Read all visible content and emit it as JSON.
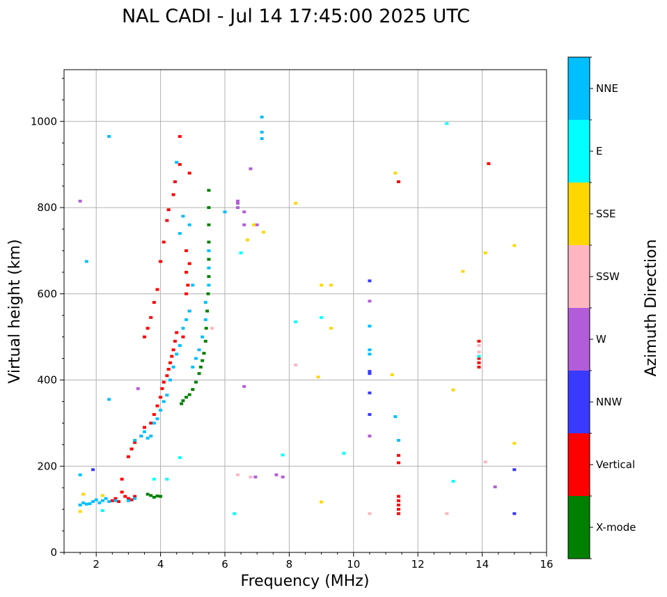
{
  "chart_data": {
    "type": "scatter",
    "title": "NAL CADI - Jul 14 17:45:00 2025 UTC",
    "xlabel": "Frequency (MHz)",
    "ylabel": "Virtual height (km)",
    "xlim": [
      1,
      16
    ],
    "ylim": [
      0,
      1120
    ],
    "xticks": [
      2,
      4,
      6,
      8,
      10,
      12,
      14,
      16
    ],
    "yticks": [
      0,
      200,
      400,
      600,
      800,
      1000
    ],
    "grid": true,
    "colorbar": {
      "label": "Azimuth Direction",
      "categories": [
        {
          "name": "X-mode",
          "color": "#008000"
        },
        {
          "name": "Vertical",
          "color": "#ff0000"
        },
        {
          "name": "NNW",
          "color": "#3a3aff"
        },
        {
          "name": "W",
          "color": "#b35cd9"
        },
        {
          "name": "SSW",
          "color": "#ffb6c1"
        },
        {
          "name": "SSE",
          "color": "#ffd700"
        },
        {
          "name": "E",
          "color": "#00ffff"
        },
        {
          "name": "NNE",
          "color": "#00bfff"
        }
      ]
    },
    "series": [
      {
        "name": "X-mode",
        "points": [
          [
            3.6,
            135
          ],
          [
            3.7,
            132
          ],
          [
            3.8,
            128
          ],
          [
            3.9,
            131
          ],
          [
            4.0,
            130
          ],
          [
            4.65,
            345
          ],
          [
            4.7,
            352
          ],
          [
            4.8,
            360
          ],
          [
            4.9,
            366
          ],
          [
            5.0,
            378
          ],
          [
            5.1,
            395
          ],
          [
            5.2,
            415
          ],
          [
            5.25,
            430
          ],
          [
            5.3,
            445
          ],
          [
            5.35,
            462
          ],
          [
            5.4,
            490
          ],
          [
            5.42,
            520
          ],
          [
            5.45,
            560
          ],
          [
            5.48,
            600
          ],
          [
            5.5,
            640
          ],
          [
            5.5,
            680
          ],
          [
            5.5,
            720
          ],
          [
            5.5,
            760
          ],
          [
            5.5,
            800
          ],
          [
            5.5,
            840
          ]
        ]
      },
      {
        "name": "Vertical",
        "points": [
          [
            2.5,
            120
          ],
          [
            2.6,
            125
          ],
          [
            2.7,
            118
          ],
          [
            2.8,
            140
          ],
          [
            2.8,
            170
          ],
          [
            2.9,
            130
          ],
          [
            3.0,
            125
          ],
          [
            3.1,
            122
          ],
          [
            3.2,
            130
          ],
          [
            3.0,
            222
          ],
          [
            3.1,
            240
          ],
          [
            3.2,
            255
          ],
          [
            3.4,
            270
          ],
          [
            3.5,
            290
          ],
          [
            3.7,
            300
          ],
          [
            3.8,
            320
          ],
          [
            3.9,
            340
          ],
          [
            4.0,
            360
          ],
          [
            4.05,
            380
          ],
          [
            4.1,
            395
          ],
          [
            4.2,
            410
          ],
          [
            4.25,
            425
          ],
          [
            4.3,
            440
          ],
          [
            4.35,
            455
          ],
          [
            4.4,
            470
          ],
          [
            4.45,
            490
          ],
          [
            4.5,
            510
          ],
          [
            3.5,
            500
          ],
          [
            3.6,
            520
          ],
          [
            3.7,
            545
          ],
          [
            3.8,
            580
          ],
          [
            3.9,
            610
          ],
          [
            4.0,
            675
          ],
          [
            4.1,
            720
          ],
          [
            4.2,
            770
          ],
          [
            4.25,
            795
          ],
          [
            4.4,
            830
          ],
          [
            4.45,
            860
          ],
          [
            4.8,
            650
          ],
          [
            4.8,
            600
          ],
          [
            4.7,
            500
          ],
          [
            4.6,
            900
          ],
          [
            4.9,
            880
          ],
          [
            4.8,
            700
          ],
          [
            4.85,
            620
          ],
          [
            4.9,
            560
          ],
          [
            4.9,
            670
          ],
          [
            4.6,
            965
          ],
          [
            11.4,
            90
          ],
          [
            11.4,
            100
          ],
          [
            11.4,
            110
          ],
          [
            11.4,
            120
          ],
          [
            11.4,
            130
          ],
          [
            11.4,
            208
          ],
          [
            11.4,
            225
          ],
          [
            11.4,
            860
          ],
          [
            14.2,
            902
          ],
          [
            13.9,
            430
          ],
          [
            13.9,
            440
          ],
          [
            13.9,
            450
          ],
          [
            13.9,
            490
          ]
        ]
      },
      {
        "name": "NNW",
        "points": [
          [
            10.5,
            320
          ],
          [
            10.5,
            370
          ],
          [
            10.5,
            415
          ],
          [
            10.5,
            420
          ],
          [
            10.5,
            630
          ],
          [
            15.0,
            90
          ],
          [
            15.0,
            192
          ],
          [
            1.9,
            192
          ]
        ]
      },
      {
        "name": "W",
        "points": [
          [
            6.4,
            800
          ],
          [
            6.4,
            810
          ],
          [
            6.4,
            815
          ],
          [
            6.6,
            385
          ],
          [
            6.6,
            760
          ],
          [
            6.6,
            790
          ],
          [
            7.0,
            760
          ],
          [
            6.8,
            890
          ],
          [
            7.6,
            180
          ],
          [
            7.8,
            175
          ],
          [
            10.5,
            583
          ],
          [
            10.5,
            270
          ],
          [
            14.4,
            152
          ],
          [
            1.5,
            815
          ],
          [
            3.3,
            380
          ],
          [
            6.95,
            175
          ]
        ]
      },
      {
        "name": "SSW",
        "points": [
          [
            6.4,
            180
          ],
          [
            6.8,
            175
          ],
          [
            10.5,
            90
          ],
          [
            12.9,
            90
          ],
          [
            14.1,
            210
          ],
          [
            13.9,
            465
          ],
          [
            13.9,
            480
          ],
          [
            8.2,
            435
          ],
          [
            5.6,
            520
          ]
        ]
      },
      {
        "name": "SSE",
        "points": [
          [
            8.2,
            810
          ],
          [
            9.0,
            620
          ],
          [
            9.3,
            620
          ],
          [
            9.3,
            520
          ],
          [
            8.9,
            407
          ],
          [
            9.0,
            117
          ],
          [
            11.3,
            880
          ],
          [
            11.2,
            412
          ],
          [
            13.4,
            652
          ],
          [
            14.1,
            695
          ],
          [
            15.0,
            712
          ],
          [
            13.1,
            377
          ],
          [
            15.0,
            253
          ],
          [
            7.2,
            743
          ],
          [
            6.7,
            725
          ],
          [
            6.9,
            760
          ],
          [
            1.5,
            95
          ],
          [
            1.6,
            135
          ],
          [
            2.2,
            132
          ]
        ]
      },
      {
        "name": "E",
        "points": [
          [
            8.2,
            535
          ],
          [
            9.0,
            545
          ],
          [
            9.7,
            230
          ],
          [
            7.8,
            226
          ],
          [
            13.1,
            165
          ],
          [
            12.9,
            995
          ],
          [
            13.9,
            455
          ],
          [
            6.3,
            90
          ],
          [
            6.5,
            695
          ],
          [
            2.2,
            97
          ],
          [
            3.8,
            170
          ],
          [
            4.2,
            170
          ],
          [
            4.6,
            220
          ]
        ]
      },
      {
        "name": "NNE",
        "points": [
          [
            1.5,
            110
          ],
          [
            1.6,
            115
          ],
          [
            1.7,
            112
          ],
          [
            1.8,
            113
          ],
          [
            1.9,
            118
          ],
          [
            2.0,
            122
          ],
          [
            2.1,
            115
          ],
          [
            2.2,
            120
          ],
          [
            2.3,
            125
          ],
          [
            2.4,
            118
          ],
          [
            2.6,
            120
          ],
          [
            3.0,
            120
          ],
          [
            3.2,
            125
          ],
          [
            3.2,
            260
          ],
          [
            3.4,
            270
          ],
          [
            3.5,
            280
          ],
          [
            3.6,
            265
          ],
          [
            3.7,
            270
          ],
          [
            3.8,
            300
          ],
          [
            3.9,
            310
          ],
          [
            4.0,
            330
          ],
          [
            4.1,
            350
          ],
          [
            4.2,
            365
          ],
          [
            4.3,
            400
          ],
          [
            4.4,
            430
          ],
          [
            4.5,
            460
          ],
          [
            4.6,
            480
          ],
          [
            4.7,
            520
          ],
          [
            4.8,
            540
          ],
          [
            4.9,
            560
          ],
          [
            5.0,
            430
          ],
          [
            5.1,
            450
          ],
          [
            5.2,
            470
          ],
          [
            5.3,
            500
          ],
          [
            5.4,
            540
          ],
          [
            5.4,
            580
          ],
          [
            5.5,
            620
          ],
          [
            5.5,
            660
          ],
          [
            5.5,
            700
          ],
          [
            4.5,
            905
          ],
          [
            4.6,
            740
          ],
          [
            4.7,
            780
          ],
          [
            4.9,
            760
          ],
          [
            5.0,
            620
          ],
          [
            6.0,
            790
          ],
          [
            7.15,
            1010
          ],
          [
            7.15,
            975
          ],
          [
            7.15,
            960
          ],
          [
            10.5,
            470
          ],
          [
            10.5,
            525
          ],
          [
            10.5,
            460
          ],
          [
            11.3,
            315
          ],
          [
            11.4,
            260
          ],
          [
            2.4,
            965
          ],
          [
            1.5,
            180
          ],
          [
            2.4,
            355
          ],
          [
            1.7,
            675
          ]
        ]
      }
    ]
  }
}
